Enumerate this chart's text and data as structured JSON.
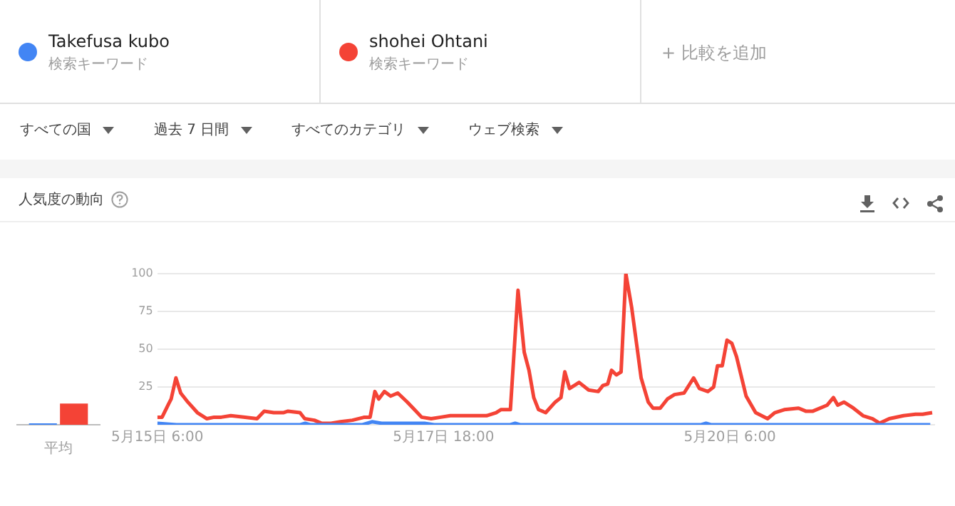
{
  "chart_data": [
    {
      "type": "line",
      "legend": "top",
      "annotations": [
        "検索キーワード",
        "検索キーワード",
        "+ 比較を追加",
        "すべての国",
        "過去 7 日間",
        "すべてのカテゴリ",
        "ウェブ検索"
      ],
      "xlim": [
        "--05-15T06:00",
        "--05-22T01:00"
      ],
      "xticks": [
        {
          "value": "--05-15T06:00",
          "label": "5月15日 6:00"
        },
        {
          "value": "--05-17T18:00",
          "label": "5月17日 18:00"
        },
        {
          "value": "--05-20T06:00",
          "label": "5月20日 6:00"
        }
      ],
      "ylim": [
        0,
        100
      ],
      "yticks": [
        {
          "value": 0,
          "label": null
        },
        25,
        50,
        75,
        100
      ],
      "grid": "y",
      "marker": "none",
      "series": [
        {
          "name": "Takefusa kubo",
          "color": "#4285f4",
          "x": [
            "--05-15T06:00",
            "--05-15T10:00",
            "--05-16T12:00",
            "--05-16T13:00",
            "--05-16T14:00",
            "--05-17T01:00",
            "--05-17T03:00",
            "--05-17T05:00",
            "--05-17T14:00",
            "--05-17T16:00",
            "--05-18T08:00",
            "--05-18T09:00",
            "--05-18T10:00",
            "--05-20T00:00",
            "--05-20T01:00",
            "--05-20T02:00",
            "--05-22T00:00"
          ],
          "values": [
            1,
            0,
            0,
            1,
            0,
            0,
            2,
            1,
            1,
            0,
            0,
            1,
            0,
            0,
            1,
            0,
            0
          ]
        },
        {
          "name": "shohei Ohtani",
          "color": "#f44336",
          "x": [
            "--05-15T06:00",
            "--05-15T07:00",
            "--05-15T08:24",
            "--05-15T08:54",
            "--05-15T09:54",
            "--05-15T10:54",
            "--05-15T12:24",
            "--05-15T14:24",
            "--05-15T16:24",
            "--05-15T17:54",
            "--05-15T19:24",
            "--05-15T21:24",
            "--05-16T00:24",
            "--05-16T02:54",
            "--05-16T04:24",
            "--05-16T06:24",
            "--05-16T08:24",
            "--05-16T09:24",
            "--05-16T11:54",
            "--05-16T12:54",
            "--05-16T14:54",
            "--05-16T16:24",
            "--05-16T18:24",
            "--05-16T20:24",
            "--05-16T22:54",
            "--05-17T01:24",
            "--05-17T02:36",
            "--05-17T03:36",
            "--05-17T04:24",
            "--05-17T05:36",
            "--05-17T06:54",
            "--05-17T08:24",
            "--05-17T10:24",
            "--05-17T11:54",
            "--05-17T13:24",
            "--05-17T15:24",
            "--05-17T17:24",
            "--05-17T19:24",
            "--05-17T22:24",
            "--05-18T03:00",
            "--05-18T05:00",
            "--05-18T06:00",
            "--05-18T08:00",
            "--05-18T09:36",
            "--05-18T10:54",
            "--05-18T11:54",
            "--05-18T12:54",
            "--05-18T13:54",
            "--05-18T15:24",
            "--05-18T17:24",
            "--05-18T18:36",
            "--05-18T19:24",
            "--05-18T20:24",
            "--05-18T22:24",
            "--05-19T00:24",
            "--05-19T02:24",
            "--05-19T03:24",
            "--05-19T04:24",
            "--05-19T05:12",
            "--05-19T06:12",
            "--05-19T07:12",
            "--05-19T08:12",
            "--05-19T09:24",
            "--05-19T10:36",
            "--05-19T11:24",
            "--05-19T12:54",
            "--05-19T13:54",
            "--05-19T15:24",
            "--05-19T16:54",
            "--05-19T18:24",
            "--05-19T20:24",
            "--05-19T22:24",
            "--05-19T23:36",
            "--05-20T01:24",
            "--05-20T02:36",
            "--05-20T03:24",
            "--05-20T04:24",
            "--05-20T05:24",
            "--05-20T06:24",
            "--05-20T07:24",
            "--05-20T09:24",
            "--05-20T11:24",
            "--05-20T13:54",
            "--05-20T15:24",
            "--05-20T17:24",
            "--05-20T20:24",
            "--05-20T21:54",
            "--05-20T23:24",
            "--05-21T02:24",
            "--05-21T03:42",
            "--05-21T04:36",
            "--05-21T05:54",
            "--05-21T07:54",
            "--05-21T09:54",
            "--05-21T11:54",
            "--05-21T13:24",
            "--05-21T15:24",
            "--05-21T18:24",
            "--05-21T20:54",
            "--05-21T22:24",
            "--05-22T00:24"
          ],
          "values": [
            5,
            5,
            14,
            17,
            31,
            21,
            15,
            8,
            4,
            5,
            5,
            6,
            5,
            4,
            9,
            8,
            8,
            9,
            8,
            4,
            3,
            1,
            1,
            2,
            3,
            5,
            5,
            22,
            17,
            22,
            19,
            21,
            15,
            10,
            5,
            4,
            5,
            6,
            6,
            6,
            8,
            10,
            10,
            89,
            48,
            36,
            18,
            10,
            8,
            15,
            18,
            35,
            24,
            28,
            23,
            22,
            26,
            27,
            36,
            33,
            35,
            100,
            78,
            50,
            31,
            15,
            11,
            11,
            17,
            20,
            21,
            31,
            24,
            22,
            25,
            39,
            39,
            56,
            54,
            45,
            19,
            8,
            4,
            8,
            10,
            11,
            9,
            9,
            13,
            18,
            13,
            15,
            11,
            6,
            4,
            1,
            4,
            6,
            7,
            7,
            8
          ]
        }
      ]
    },
    {
      "type": "bar",
      "title": "人気度の動向",
      "categories": [
        "平均"
      ],
      "ylim": [
        0,
        100
      ],
      "tick_labels": "x",
      "series": [
        {
          "color": "#4285f4",
          "values": [
            1
          ]
        },
        {
          "color": "#f44336",
          "values": [
            14
          ]
        }
      ]
    }
  ]
}
